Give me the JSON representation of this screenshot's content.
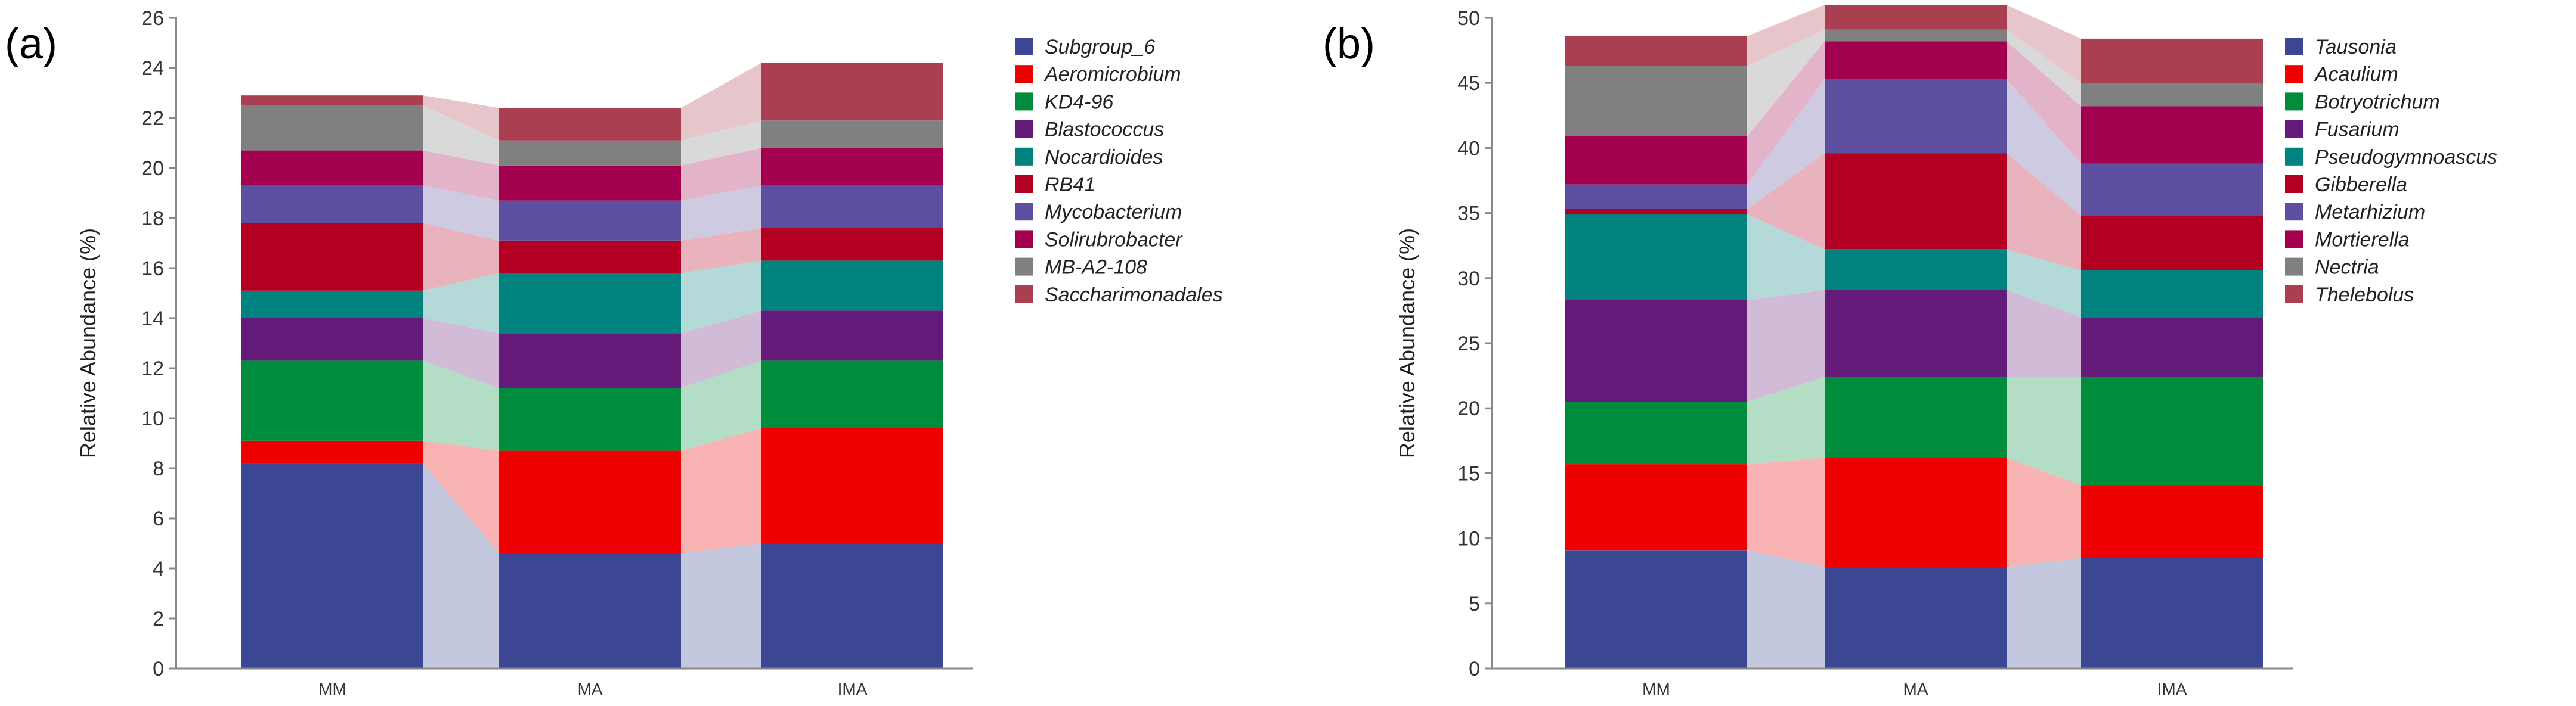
{
  "chart_data": [
    {
      "type": "stacked-bar",
      "panel_label": "(a)",
      "categories": [
        "MM",
        "MA",
        "IMA"
      ],
      "ylabel": "Relative Abundance (%)",
      "ylim": [
        0,
        26
      ],
      "yticks": [
        0,
        2,
        4,
        6,
        8,
        10,
        12,
        14,
        16,
        18,
        20,
        22,
        24,
        26
      ],
      "connectors": true,
      "legend_position": "right",
      "series": [
        {
          "name": "Subgroup_6",
          "color": "#3b4792",
          "values": [
            8.2,
            4.6,
            5.0
          ]
        },
        {
          "name": "Aeromicrobium",
          "color": "#ee0000",
          "values": [
            0.9,
            4.1,
            4.6
          ]
        },
        {
          "name": "KD4-96",
          "color": "#008c3d",
          "values": [
            3.2,
            2.5,
            2.7
          ]
        },
        {
          "name": "Blastococcus",
          "color": "#641b79",
          "values": [
            1.7,
            2.2,
            2.0
          ]
        },
        {
          "name": "Nocardioides",
          "color": "#00827f",
          "values": [
            1.1,
            2.4,
            2.0
          ]
        },
        {
          "name": "RB41",
          "color": "#b30022",
          "values": [
            2.7,
            1.3,
            1.3
          ]
        },
        {
          "name": "Mycobacterium",
          "color": "#5c4f9f",
          "values": [
            1.5,
            1.6,
            1.7
          ]
        },
        {
          "name": "Solirubrobacter",
          "color": "#a3004f",
          "values": [
            1.4,
            1.4,
            1.5
          ]
        },
        {
          "name": "MB-A2-108",
          "color": "#808080",
          "values": [
            1.8,
            1.0,
            1.1
          ]
        },
        {
          "name": "Saccharimonadales",
          "color": "#aa3f52",
          "values": [
            0.4,
            1.3,
            2.3
          ]
        }
      ]
    },
    {
      "type": "stacked-bar",
      "panel_label": "(b)",
      "categories": [
        "MM",
        "MA",
        "IMA"
      ],
      "ylabel": "Relative Abundance (%)",
      "ylim": [
        0,
        50
      ],
      "yticks": [
        0,
        5,
        10,
        15,
        20,
        25,
        30,
        35,
        40,
        45,
        50
      ],
      "connectors": true,
      "legend_position": "right",
      "series": [
        {
          "name": "Tausonia",
          "color": "#3b4792",
          "values": [
            9.1,
            7.8,
            8.5
          ]
        },
        {
          "name": "Acaulium",
          "color": "#ee0000",
          "values": [
            6.6,
            8.4,
            5.6
          ]
        },
        {
          "name": "Botryotrichum",
          "color": "#008c3d",
          "values": [
            4.8,
            6.2,
            8.3
          ]
        },
        {
          "name": "Fusarium",
          "color": "#641b79",
          "values": [
            7.8,
            6.7,
            4.6
          ]
        },
        {
          "name": "Pseudogymnoascus",
          "color": "#00827f",
          "values": [
            6.6,
            3.1,
            3.6
          ]
        },
        {
          "name": "Gibberella",
          "color": "#b30022",
          "values": [
            0.4,
            7.4,
            4.2
          ]
        },
        {
          "name": "Metarhizium",
          "color": "#5c4f9f",
          "values": [
            1.9,
            5.7,
            4.0
          ]
        },
        {
          "name": "Mortierella",
          "color": "#a3004f",
          "values": [
            3.7,
            2.9,
            4.4
          ]
        },
        {
          "name": "Nectria",
          "color": "#808080",
          "values": [
            5.4,
            0.9,
            1.8
          ]
        },
        {
          "name": "Thelebolus",
          "color": "#aa3f52",
          "values": [
            2.3,
            1.9,
            3.4
          ]
        }
      ]
    }
  ]
}
